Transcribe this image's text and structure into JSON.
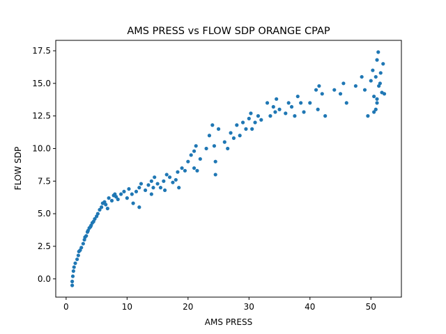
{
  "chart_data": {
    "type": "scatter",
    "title": "AMS PRESS vs FLOW SDP ORANGE CPAP",
    "xlabel": "AMS PRESS",
    "ylabel": "FLOW SDP",
    "xlim": [
      -1.7,
      55.0
    ],
    "ylim": [
      -1.4,
      18.3
    ],
    "xticks": [
      0,
      10,
      20,
      30,
      40,
      50
    ],
    "xtick_labels": [
      "0",
      "10",
      "20",
      "30",
      "40",
      "50"
    ],
    "yticks": [
      0.0,
      2.5,
      5.0,
      7.5,
      10.0,
      12.5,
      15.0,
      17.5
    ],
    "ytick_labels": [
      "0.0",
      "2.5",
      "5.0",
      "7.5",
      "10.0",
      "12.5",
      "15.0",
      "17.5"
    ],
    "grid": false,
    "marker_color": "#1f77b4",
    "series": [
      {
        "x": [
          1.0,
          1.0,
          1.1,
          1.2,
          1.3,
          1.5,
          1.8,
          2.0,
          2.1,
          2.3,
          2.5,
          2.8,
          3.0,
          3.1,
          3.3,
          3.5,
          3.6,
          3.8,
          4.0,
          4.1,
          4.3,
          4.5,
          4.7,
          5.0,
          5.2,
          5.5,
          5.8,
          6.0,
          6.3,
          6.5,
          6.8,
          7.0,
          7.5,
          7.8,
          8.0,
          8.2,
          8.5,
          9.0,
          9.5,
          10.0,
          10.3,
          10.8,
          11.0,
          11.5,
          12.0,
          12.0,
          12.3,
          13.0,
          13.5,
          14.0,
          14.0,
          14.3,
          14.5,
          15.0,
          15.5,
          16.0,
          16.2,
          16.5,
          17.0,
          17.5,
          18.0,
          18.3,
          18.5,
          19.0,
          19.5,
          20.0,
          20.5,
          21.0,
          21.0,
          21.3,
          21.5,
          22.0,
          23.0,
          23.5,
          24.0,
          24.3,
          24.5,
          24.5,
          25.0,
          26.0,
          26.5,
          27.0,
          27.5,
          28.0,
          28.5,
          29.0,
          29.5,
          30.0,
          30.3,
          30.5,
          31.0,
          31.5,
          32.0,
          33.0,
          33.5,
          34.0,
          34.3,
          34.5,
          35.0,
          36.0,
          36.5,
          37.0,
          37.5,
          38.0,
          38.5,
          39.0,
          40.0,
          41.0,
          41.3,
          41.5,
          42.0,
          42.5,
          44.0,
          45.0,
          45.5,
          46.0,
          47.5,
          48.5,
          49.0,
          49.5,
          50.0,
          50.3,
          50.5,
          50.8,
          51.0,
          51.0,
          51.2,
          51.5,
          51.8,
          52.0,
          50.8,
          51.3,
          51.6,
          50.5,
          52.2,
          51.0
        ],
        "y": [
          -0.5,
          -0.2,
          0.2,
          0.6,
          0.9,
          1.2,
          1.5,
          1.8,
          2.1,
          2.2,
          2.4,
          2.7,
          3.0,
          3.2,
          3.3,
          3.6,
          3.7,
          3.9,
          4.0,
          4.1,
          4.3,
          4.4,
          4.6,
          4.8,
          5.0,
          5.3,
          5.5,
          5.8,
          5.9,
          5.7,
          5.4,
          6.2,
          6.0,
          6.4,
          6.5,
          6.3,
          6.1,
          6.5,
          6.7,
          6.2,
          6.9,
          6.5,
          5.8,
          6.7,
          7.0,
          5.5,
          7.3,
          6.8,
          7.2,
          7.5,
          6.5,
          7.0,
          7.8,
          7.3,
          7.0,
          7.5,
          6.8,
          8.0,
          7.8,
          7.4,
          7.6,
          8.2,
          7.0,
          8.5,
          8.3,
          9.0,
          9.5,
          9.8,
          8.5,
          10.2,
          8.3,
          9.2,
          10.0,
          11.0,
          11.8,
          10.2,
          9.0,
          8.0,
          11.5,
          10.5,
          10.0,
          11.2,
          10.8,
          11.8,
          11.0,
          12.0,
          11.5,
          12.3,
          12.7,
          11.5,
          12.0,
          12.5,
          12.2,
          13.5,
          12.5,
          13.2,
          12.8,
          13.8,
          13.0,
          12.7,
          13.5,
          13.2,
          12.5,
          14.0,
          13.5,
          12.8,
          13.5,
          14.5,
          13.0,
          14.8,
          14.2,
          12.5,
          14.5,
          14.2,
          15.0,
          13.5,
          14.8,
          15.5,
          14.5,
          12.5,
          15.2,
          16.0,
          14.0,
          15.5,
          16.8,
          13.5,
          17.4,
          15.0,
          14.3,
          16.5,
          13.0,
          14.8,
          15.8,
          12.8,
          14.2,
          13.8
        ]
      }
    ]
  }
}
